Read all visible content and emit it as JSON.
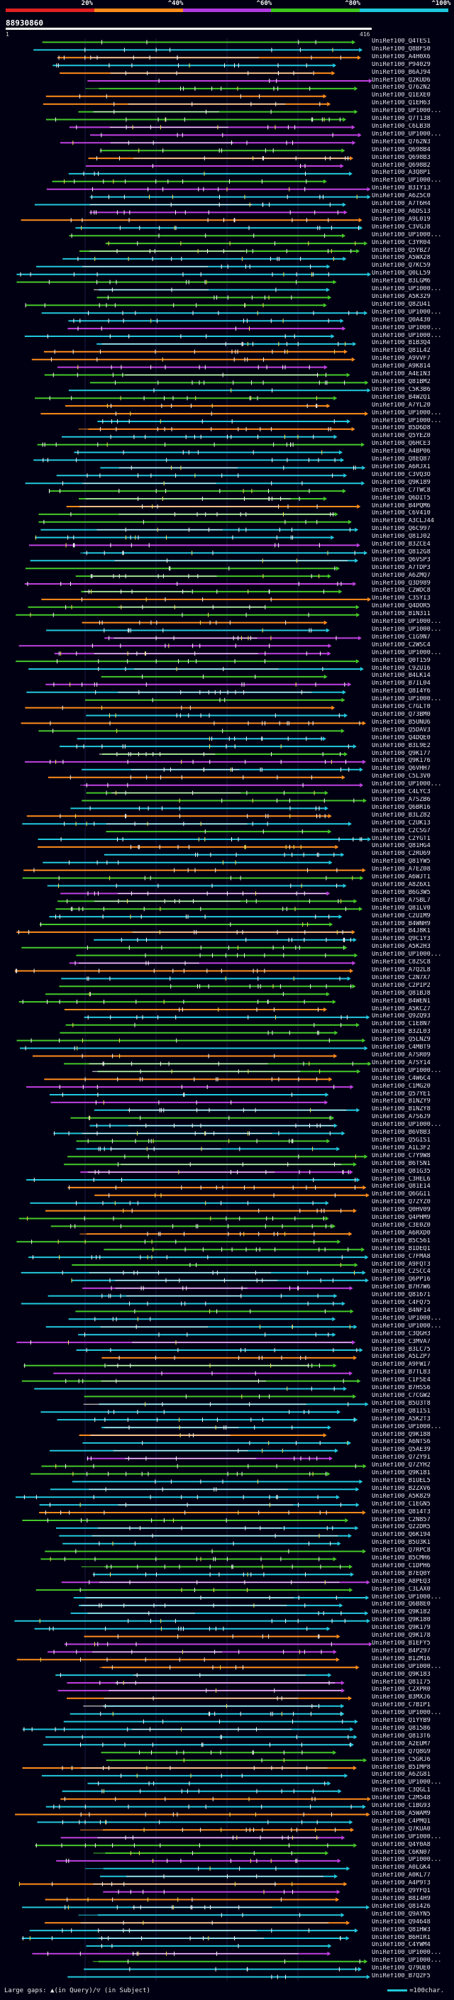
{
  "legend": {
    "segments": [
      {
        "label": "20%",
        "color": "#e02020"
      },
      {
        "label": "^40%",
        "color": "#ff8c1a"
      },
      {
        "label": "^60%",
        "color": "#b03adf"
      },
      {
        "label": "^80%",
        "color": "#3ec81e"
      },
      {
        "label": "^100%",
        "color": "#1ec8dc"
      }
    ]
  },
  "query": {
    "id": "88930860",
    "start": "1",
    "end": "416"
  },
  "colors": {
    "orange": "#ff8c1a",
    "magenta": "#c040e0",
    "green": "#44c828",
    "cyan": "#22c8de",
    "white": "#f2f2f2",
    "yellow": "#f0e050"
  },
  "hits": [
    "UniRef100_Q4TES1",
    "UniRef100_Q8BFS0",
    "UniRef100_A4H0X6",
    "UniRef100_P94029",
    "UniRef100_B6AJ94",
    "UniRef100_Q2KUD6",
    "UniRef100_Q762N2",
    "UniRef100_Q1EXE0",
    "UniRef100_Q1EH63",
    "UniRef100_UP1000...",
    "UniRef100_Q7T138",
    "UniRef100_C6LB38",
    "UniRef100_UP1000...",
    "UniRef100_Q762N3",
    "UniRef100_Q698B4",
    "UniRef100_Q698B3",
    "UniRef100_Q698B2",
    "UniRef100_A3Q8P1",
    "UniRef100_UP1000...",
    "UniRef100_B3IY13",
    "UniRef100_A6Z5C0",
    "UniRef100_A7T6H4",
    "UniRef100_A6DS13",
    "UniRef100_A9L019",
    "UniRef100_C3VGJ8",
    "UniRef100_UP1000...",
    "UniRef100_C3YR04",
    "UniRef100_Q5YBZ7",
    "UniRef100_A5WX28",
    "UniRef100_Q7KC59",
    "UniRef100_Q0LL59",
    "UniRef100_B3LGM6",
    "UniRef100_UP1000...",
    "UniRef100_A5K329",
    "UniRef100_Q8ZU41",
    "UniRef100_UP1000...",
    "UniRef100_Q0A430",
    "UniRef100_UP1000...",
    "UniRef100_UP1000...",
    "UniRef100_B1B3Q4",
    "UniRef100_Q81L42",
    "UniRef100_A9VVF7",
    "UniRef100_A9K814",
    "UniRef100_A4EIN3",
    "UniRef100_Q81BM2",
    "UniRef100_C5K3B6",
    "UniRef100_B4W2Q1",
    "UniRef100_A7YL20",
    "UniRef100_UP1000...",
    "UniRef100_UP1000...",
    "UniRef100_B5D6D8",
    "UniRef100_Q5YEZ0",
    "UniRef100_Q6HCE3",
    "UniRef100_A4BP06",
    "UniRef100_Q8EQ87",
    "UniRef100_A6RJX1",
    "UniRef100_C3VQ3O",
    "UniRef100_Q9K189",
    "UniRef100_C7TWC8",
    "UniRef100_Q6DIT5",
    "UniRef100_B4PQM6",
    "UniRef100_C6V410",
    "UniRef100_A3CLJ44",
    "UniRef100_Q6C997",
    "UniRef100_Q81J02",
    "UniRef100_B3ZCE4",
    "UniRef100_Q812G8",
    "UniRef100_Q6VSP3",
    "UniRef100_A7TDP3",
    "UniRef100_A6ZMQ7",
    "UniRef100_Q3D989",
    "UniRef100_C2WDC8",
    "UniRef100_C3SYI3",
    "UniRef100_Q4DOR5",
    "UniRef100_B1N311",
    "UniRef100_UP1000...",
    "UniRef100_UP1000...",
    "UniRef100_C1G9N7",
    "UniRef100_C2WSC4",
    "UniRef100_UP1000...",
    "UniRef100_Q0T159",
    "UniRef100_C9ZU16",
    "UniRef100_B4LK14",
    "UniRef100_B7IL04",
    "UniRef100_Q8I4Y6",
    "UniRef100_UP1000...",
    "UniRef100_C7GLT0",
    "UniRef100_Q73BM0",
    "UniRef100_B5UNU6",
    "UniRef100_Q5DAV3",
    "UniRef100_Q4DQE0",
    "UniRef100_B3L9E2",
    "UniRef100_Q9K177",
    "UniRef100_Q9K176",
    "UniRef100_Q6VHH7",
    "UniRef100_C5L3V0",
    "UniRef100_UP1000...",
    "UniRef100_C4LYC3",
    "UniRef100_A7SZB6",
    "UniRef100_Q6BR16",
    "UniRef100_B3LZ82",
    "UniRef100_C2UK13",
    "UniRef100_C2CSG7",
    "UniRef100_C2YGT1",
    "UniRef100_Q81HG4",
    "UniRef100_C2RU69",
    "UniRef100_Q81YW5",
    "UniRef100_A7EZ08",
    "UniRef100_A6WJT1",
    "UniRef100_A8Z6X1",
    "UniRef100_B6G3W5",
    "UniRef100_A7SBL7",
    "UniRef100_Q81LV0",
    "UniRef100_C2UIM9",
    "UniRef100_B4WNH9",
    "UniRef100_B4J8K1",
    "UniRef100_Q9C1Y3",
    "UniRef100_A5K2H3",
    "UniRef100_UP1000...",
    "UniRef100_C8ZSC8",
    "UniRef100_A7Q2L8",
    "UniRef100_C2N7X7",
    "UniRef100_C2PIP2",
    "UniRef100_Q81BJ8",
    "UniRef100_B4WEN1",
    "UniRef100_A5KCZ7",
    "UniRef100_Q9ZQ93",
    "UniRef100_C1E8N7",
    "UniRef100_B3ZL03",
    "UniRef100_Q5LNZ9",
    "UniRef100_C4MBT9",
    "UniRef100_A7SR09",
    "UniRef100_A7SY14",
    "UniRef100_UP1000...",
    "UniRef100_C4W6C4",
    "UniRef100_C1MG20",
    "UniRef100_Q57YE1",
    "UniRef100_B1NZY9",
    "UniRef100_B1NZY8",
    "UniRef100_A7S6J9",
    "UniRef100_UP1000...",
    "UniRef100_B6V8B3",
    "UniRef100_Q5GIS1",
    "UniRef100_A1L3F2",
    "UniRef100_C7Y9W8",
    "UniRef100_B6TSN1",
    "UniRef100_Q81G35",
    "UniRef100_C3HEL6",
    "UniRef100_Q81E14",
    "UniRef100_Q6GGI1",
    "UniRef100_Q7ZYZ0",
    "UniRef100_Q0HV09",
    "UniRef100_Q4PHM9",
    "UniRef100_C3E0Z0",
    "UniRef100_A6RXD0",
    "UniRef100_B5C561",
    "UniRef100_B1DEQ1",
    "UniRef100_C7FMA8",
    "UniRef100_A9FQT3",
    "UniRef100_C2SCC4",
    "UniRef100_Q6PP16",
    "UniRef100_B7H7W6",
    "UniRef100_Q81671",
    "UniRef100_C4FQ75",
    "UniRef100_B4NF14",
    "UniRef100_UP1000...",
    "UniRef100_UP1000...",
    "UniRef100_C3QGH3",
    "UniRef100_C3MVA7",
    "UniRef100_B3LC75",
    "UniRef100_A5LZP7",
    "UniRef100_A9FWI7",
    "UniRef100_B7TL83",
    "UniRef100_C1FSE4",
    "UniRef100_B7HSS6",
    "UniRef100_C7CGW2",
    "UniRef100_B5U3T8",
    "UniRef100_Q81IS1",
    "UniRef100_A5K2T3",
    "UniRef100_UP1000...",
    "UniRef100_Q9K188",
    "UniRef100_A6NTS6",
    "UniRef100_Q5AE39",
    "UniRef100_Q7ZY91",
    "UniRef100_Q7ZYH2",
    "UniRef100_Q9K181",
    "UniRef100_B1UEL5",
    "UniRef100_B2ZXV6",
    "UniRef100_A5K829",
    "UniRef100_C1EGN5",
    "UniRef100_Q814T3",
    "UniRef100_C2N857",
    "UniRef100_Q22DR5",
    "UniRef100_Q6K194",
    "UniRef100_B5U3K1",
    "UniRef100_Q7RPC8",
    "UniRef100_B5CMH6",
    "UniRef100_C1DPH6",
    "UniRef100_B7EQ0Y",
    "UniRef100_A8PEQ3",
    "UniRef100_C3LAX0",
    "UniRef100_UP1000...",
    "UniRef100_Q6B8E0",
    "UniRef100_Q9K182",
    "UniRef100_Q9K180",
    "UniRef100_Q9K179",
    "UniRef100_Q9K178",
    "UniRef100_B1EFY5",
    "UniRef100_B4P297",
    "UniRef100_B1ZM16",
    "UniRef100_UP1000...",
    "UniRef100_Q9K183",
    "UniRef100_Q81I75",
    "UniRef100_C2XPR0",
    "UniRef100_B3MXJ6",
    "UniRef100_C7BIP1",
    "UniRef100_UP1000...",
    "UniRef100_Q1YYB9",
    "UniRef100_Q81586",
    "UniRef100_Q813T6",
    "UniRef100_A2EUM7",
    "UniRef100_Q7Q8G9",
    "UniRef100_C5GRJ6",
    "UniRef100_B5IMP8",
    "UniRef100_A6ZG81",
    "UniRef100_UP1000...",
    "UniRef100_C3QGL1",
    "UniRef100_C2M548",
    "UniRef100_C1BG93",
    "UniRef100_A5WAM9",
    "UniRef100_C4PMQ1",
    "UniRef100_Q7KUA0",
    "UniRef100_UP1000...",
    "UniRef100_Q4Y0A8",
    "UniRef100_C6KN07",
    "UniRef100_UP1000...",
    "UniRef100_A0LGK4",
    "UniRef100_A0KL77",
    "UniRef100_A4P9T3",
    "UniRef100_Q9YFQ1",
    "UniRef100_B8I4H9",
    "UniRef100_Q81426",
    "UniRef100_Q9AYN5",
    "UniRef100_Q94648",
    "UniRef100_Q81HW3",
    "UniRef100_B6HIR1",
    "UniRef100_C4YWM4",
    "UniRef100_UP1000...",
    "UniRef100_UP1000...",
    "UniRef100_Q79UE0",
    "UniRef100_B7Q2F5"
  ],
  "footer": {
    "gaps_label": "Large gaps: ▲(in Query)/▽ (in Subject)",
    "scale_label": "=100char."
  }
}
